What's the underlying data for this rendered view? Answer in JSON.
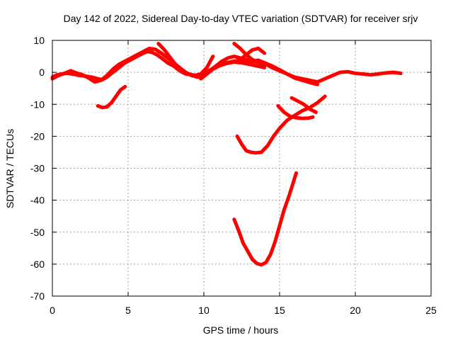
{
  "chart_data": {
    "type": "line",
    "title": "Day 142 of 2022, Sidereal Day-to-day VTEC variation (SDTVAR) for receiver srjv",
    "xlabel": "GPS time / hours",
    "ylabel": "SDTVAR / TECUs",
    "xlim": [
      0,
      25
    ],
    "ylim": [
      -70,
      10
    ],
    "x_ticks": [
      0,
      5,
      10,
      15,
      20,
      25
    ],
    "y_ticks": [
      10,
      0,
      -10,
      -20,
      -30,
      -40,
      -50,
      -60,
      -70
    ],
    "grid": true,
    "color": "#ff0000",
    "series": [
      {
        "x": [
          0.0,
          0.3,
          0.6,
          1.0,
          1.4,
          1.8,
          2.2,
          2.6,
          3.0,
          3.3,
          3.6,
          4.0,
          4.4,
          4.8,
          5.2,
          5.6,
          6.0,
          6.3,
          6.6,
          6.9,
          7.2,
          7.6,
          8.0,
          8.4,
          8.8,
          9.2,
          9.6,
          10.0,
          10.5,
          11.0,
          11.5,
          12.0,
          12.5,
          13.0,
          13.5,
          14.0,
          14.5,
          15.0,
          15.5,
          16.0,
          16.5,
          17.0,
          17.5,
          18.0,
          18.5,
          19.0,
          19.5,
          20.0,
          20.5,
          21.0,
          21.5,
          22.0,
          22.5,
          23.0
        ],
        "y": [
          -1.5,
          -0.8,
          -0.5,
          -0.3,
          -0.6,
          -1.0,
          -1.2,
          -1.5,
          -2.0,
          -2.3,
          -1.5,
          0.0,
          1.5,
          3.0,
          4.0,
          5.0,
          6.0,
          6.5,
          6.2,
          5.5,
          4.5,
          3.0,
          2.0,
          0.5,
          -0.5,
          -0.8,
          -1.0,
          -0.5,
          1.0,
          2.5,
          3.0,
          3.5,
          3.8,
          3.5,
          3.2,
          2.8,
          1.5,
          0.5,
          -0.5,
          -1.5,
          -2.0,
          -2.5,
          -3.0,
          -2.0,
          -1.0,
          0.0,
          0.2,
          -0.3,
          -0.5,
          -0.8,
          -0.5,
          -0.2,
          0.0,
          -0.3
        ]
      },
      {
        "x": [
          0.0,
          0.4,
          0.8,
          1.2,
          1.6,
          2.0,
          2.4,
          2.8,
          3.2,
          3.6,
          4.0,
          4.4,
          4.8,
          5.2,
          5.6,
          6.0,
          6.4,
          6.8,
          7.2,
          7.6,
          8.0,
          8.4,
          8.8,
          9.2,
          9.6,
          10.0,
          10.4,
          10.8,
          11.2,
          11.6,
          12.0,
          12.4,
          12.8,
          13.2,
          13.6,
          14.0,
          14.5,
          15.0,
          15.5,
          16.0,
          16.5,
          17.0,
          17.5
        ],
        "y": [
          -2.0,
          -1.0,
          -0.3,
          0.5,
          -0.2,
          -0.8,
          -1.8,
          -3.0,
          -2.5,
          -1.0,
          1.0,
          2.5,
          3.5,
          4.5,
          5.5,
          6.5,
          7.5,
          7.2,
          6.0,
          4.5,
          3.0,
          1.5,
          0.0,
          -1.0,
          -1.5,
          -1.0,
          0.5,
          2.0,
          3.5,
          4.5,
          5.0,
          4.5,
          4.0,
          3.5,
          3.8,
          3.0,
          2.0,
          0.8,
          -0.5,
          -1.8,
          -2.5,
          -3.2,
          -3.8
        ]
      },
      {
        "x": [
          7.0,
          7.4,
          7.8,
          8.2,
          8.6,
          9.0,
          9.4,
          9.8,
          10.2,
          10.6
        ],
        "y": [
          9.0,
          7.0,
          4.5,
          2.0,
          0.5,
          -0.5,
          -1.0,
          -0.5,
          1.5,
          5.0
        ]
      },
      {
        "x": [
          9.8,
          10.2,
          10.6,
          11.0,
          11.5,
          12.0,
          12.5,
          13.0,
          13.5,
          14.0
        ],
        "y": [
          -2.0,
          -0.5,
          1.0,
          2.0,
          2.8,
          3.2,
          3.0,
          2.5,
          2.0,
          1.5
        ]
      },
      {
        "x": [
          12.0,
          12.4,
          12.8,
          13.2,
          13.6,
          14.0,
          14.5
        ],
        "y": [
          9.0,
          7.5,
          5.5,
          4.0,
          3.0,
          2.5,
          2.0
        ]
      },
      {
        "x": [
          12.4,
          12.8,
          13.2,
          13.6,
          14.0
        ],
        "y": [
          4.0,
          5.5,
          7.0,
          7.5,
          6.0
        ]
      },
      {
        "x": [
          3.0,
          3.3,
          3.6,
          3.9,
          4.2,
          4.5,
          4.8
        ],
        "y": [
          -10.5,
          -11.0,
          -10.8,
          -9.5,
          -7.5,
          -5.5,
          -4.5
        ]
      },
      {
        "x": [
          12.2,
          12.5,
          12.8,
          13.1,
          13.4,
          13.8,
          14.2,
          14.6,
          15.0,
          15.5,
          16.0,
          16.5,
          17.0,
          17.5,
          18.0
        ],
        "y": [
          -20.0,
          -22.5,
          -24.5,
          -25.0,
          -25.2,
          -25.0,
          -23.0,
          -20.0,
          -17.5,
          -15.0,
          -13.5,
          -12.0,
          -11.0,
          -9.5,
          -7.5
        ]
      },
      {
        "x": [
          15.8,
          16.2,
          16.6,
          17.0,
          17.4
        ],
        "y": [
          -8.0,
          -9.0,
          -10.0,
          -11.5,
          -12.5
        ]
      },
      {
        "x": [
          14.9,
          15.3,
          15.7,
          16.1,
          16.5,
          16.9,
          17.2
        ],
        "y": [
          -10.5,
          -12.5,
          -13.8,
          -14.2,
          -14.4,
          -14.3,
          -14.0
        ]
      },
      {
        "x": [
          12.0,
          12.3,
          12.6,
          12.9,
          13.2,
          13.5,
          13.8,
          14.1,
          14.4,
          14.7,
          15.0,
          15.3,
          15.6,
          15.9,
          16.1
        ],
        "y": [
          -46.0,
          -49.5,
          -53.5,
          -56.0,
          -58.5,
          -59.8,
          -60.2,
          -59.5,
          -57.0,
          -53.0,
          -48.0,
          -43.0,
          -39.0,
          -34.5,
          -31.5
        ]
      }
    ]
  }
}
